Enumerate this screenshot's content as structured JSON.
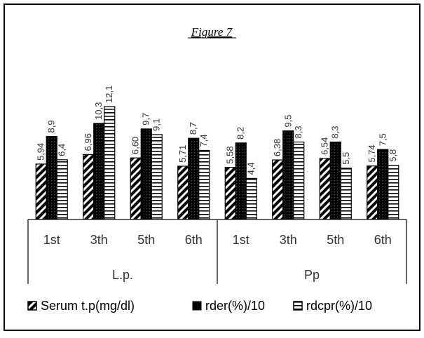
{
  "chart_data": {
    "type": "bar",
    "title": "Figure 7",
    "groups": [
      {
        "label": "L.p.",
        "categories": [
          "1st",
          "3th",
          "5th",
          "6th"
        ]
      },
      {
        "label": "Pp",
        "categories": [
          "1st",
          "3th",
          "5th",
          "6th"
        ]
      }
    ],
    "series": [
      {
        "name": "Serum t.p(mg/dl)",
        "pattern": "diagonal-hatch",
        "values": [
          5.94,
          6.96,
          6.6,
          5.71,
          5.58,
          6.38,
          6.54,
          5.74
        ],
        "labels": [
          "5,94",
          "6,96",
          "6,60",
          "5,71",
          "5,58",
          "6,38",
          "6,54",
          "5,74"
        ]
      },
      {
        "name": "rder(%)/10",
        "pattern": "dotted-black",
        "values": [
          8.9,
          10.3,
          9.7,
          8.7,
          8.2,
          9.5,
          8.3,
          7.5
        ],
        "labels": [
          "8,9",
          "10,3",
          "9,7",
          "8,7",
          "8,2",
          "9,5",
          "8,3",
          "7,5"
        ]
      },
      {
        "name": "rdcpr(%)/10",
        "pattern": "horizontal-lines",
        "values": [
          6.4,
          12.1,
          9.1,
          7.4,
          4.4,
          8.3,
          5.5,
          5.8
        ],
        "labels": [
          "6,4",
          "12,1",
          "9,1",
          "7,4",
          "4,4",
          "8,3",
          "5,5",
          "5,8"
        ]
      }
    ],
    "ylim": [
      0,
      16
    ],
    "grid": false,
    "legend_position": "bottom",
    "colors": {
      "border": "#000000",
      "bar_fill": "#000000",
      "bar_bg": "#ffffff",
      "text": "#333333"
    }
  }
}
